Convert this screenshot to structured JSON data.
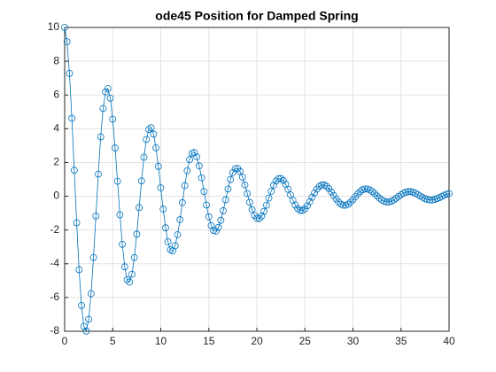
{
  "chart_data": {
    "type": "line",
    "title": "ode45 Position for Damped Spring",
    "color": "#0072bd",
    "marker": "o",
    "grid": true,
    "xlim": [
      0,
      40
    ],
    "xticks": [
      0,
      5,
      10,
      15,
      20,
      25,
      30,
      35,
      40
    ],
    "ylim": [
      -8,
      10
    ],
    "yticks": [
      -8,
      -6,
      -4,
      -2,
      0,
      2,
      4,
      6,
      8,
      10
    ],
    "x": [
      0,
      0.25,
      0.5,
      0.75,
      1,
      1.25,
      1.5,
      1.75,
      2,
      2.25,
      2.5,
      2.75,
      3,
      3.25,
      3.5,
      3.75,
      4,
      4.25,
      4.5,
      4.75,
      5,
      5.25,
      5.5,
      5.75,
      6,
      6.25,
      6.5,
      6.75,
      7,
      7.25,
      7.5,
      7.75,
      8,
      8.25,
      8.5,
      8.75,
      9,
      9.25,
      9.5,
      9.75,
      10,
      10.25,
      10.5,
      10.75,
      11,
      11.25,
      11.5,
      11.75,
      12,
      12.25,
      12.5,
      12.75,
      13,
      13.25,
      13.5,
      13.75,
      14,
      14.25,
      14.5,
      14.75,
      15,
      15.25,
      15.5,
      15.75,
      16,
      16.25,
      16.5,
      16.75,
      17,
      17.25,
      17.5,
      17.75,
      18,
      18.25,
      18.5,
      18.75,
      19,
      19.25,
      19.5,
      19.75,
      20,
      20.25,
      20.5,
      20.75,
      21,
      21.25,
      21.5,
      21.75,
      22,
      22.25,
      22.5,
      22.75,
      23,
      23.25,
      23.5,
      23.75,
      24,
      24.25,
      24.5,
      24.75,
      25,
      25.25,
      25.5,
      25.75,
      26,
      26.25,
      26.5,
      26.75,
      27,
      27.25,
      27.5,
      27.75,
      28,
      28.25,
      28.5,
      28.75,
      29,
      29.25,
      29.5,
      29.75,
      30,
      30.25,
      30.5,
      30.75,
      31,
      31.25,
      31.5,
      31.75,
      32,
      32.25,
      32.5,
      32.75,
      33,
      33.25,
      33.5,
      33.75,
      34,
      34.25,
      34.5,
      34.75,
      35,
      35.25,
      35.5,
      35.75,
      36,
      36.25,
      36.5,
      36.75,
      37,
      37.25,
      37.5,
      37.75,
      38,
      38.25,
      38.5,
      38.75,
      39,
      39.25,
      39.5,
      39.75,
      40
    ],
    "values": [
      10,
      9.16,
      7.28,
      4.62,
      1.54,
      -1.57,
      -4.35,
      -6.47,
      -7.71,
      -7.99,
      -7.29,
      -5.77,
      -3.63,
      -1.17,
      1.31,
      3.52,
      5.2,
      6.18,
      6.38,
      5.81,
      4.57,
      2.86,
      0.89,
      -1.1,
      -2.85,
      -4.18,
      -4.95,
      -5.09,
      -4.62,
      -3.63,
      -2.25,
      -0.67,
      0.91,
      2.31,
      3.36,
      3.96,
      4.06,
      3.68,
      2.87,
      1.77,
      0.5,
      -0.76,
      -1.87,
      -2.7,
      -3.17,
      -3.24,
      -2.93,
      -2.28,
      -1.39,
      -0.38,
      0.63,
      1.51,
      2.17,
      2.54,
      2.59,
      2.33,
      1.8,
      1.09,
      0.28,
      -0.52,
      -1.22,
      -1.74,
      -2.03,
      -2.07,
      -1.85,
      -1.43,
      -0.86,
      -0.21,
      0.43,
      0.99,
      1.4,
      1.63,
      1.65,
      1.47,
      1.13,
      0.67,
      0.16,
      -0.36,
      -0.8,
      -1.13,
      -1.3,
      -1.32,
      -1.17,
      -0.9,
      -0.53,
      -0.11,
      0.29,
      0.65,
      0.9,
      1.04,
      1.05,
      0.93,
      0.71,
      0.41,
      0.08,
      -0.24,
      -0.52,
      -0.73,
      -0.84,
      -0.84,
      -0.74,
      -0.56,
      -0.32,
      -0.06,
      0.2,
      0.42,
      0.58,
      0.67,
      0.67,
      0.59,
      0.45,
      0.25,
      0.04,
      -0.16,
      -0.34,
      -0.47,
      -0.53,
      -0.53,
      -0.47,
      -0.35,
      -0.2,
      -0.03,
      0.14,
      0.28,
      0.38,
      0.43,
      0.43,
      0.37,
      0.28,
      0.16,
      0.02,
      -0.11,
      -0.22,
      -0.3,
      -0.34,
      -0.34,
      -0.3,
      -0.22,
      -0.12,
      -0.01,
      0.09,
      0.18,
      0.24,
      0.27,
      0.27,
      0.24,
      0.18,
      0.1,
      0.01,
      -0.07,
      -0.15,
      -0.19,
      -0.22,
      -0.22,
      -0.19,
      -0.14,
      -0.08,
      -0.01,
      0.06,
      0.12,
      0.16
    ]
  }
}
